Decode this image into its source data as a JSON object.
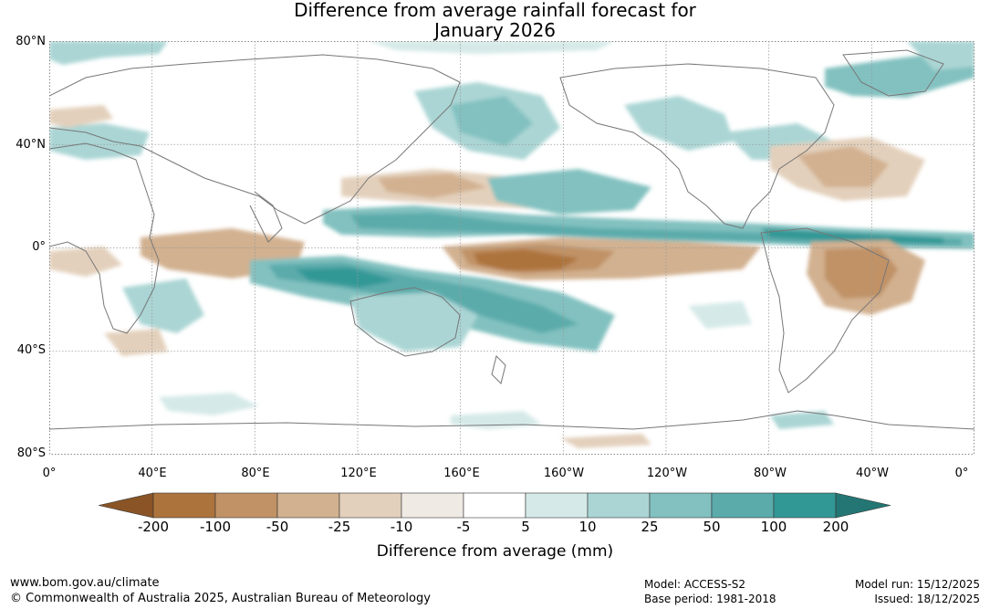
{
  "title": {
    "line1": "Difference from average rainfall forecast for",
    "line2": "January 2026"
  },
  "map": {
    "lat_labels": [
      "80°N",
      "40°N",
      "0°",
      "40°S",
      "80°S"
    ],
    "lon_labels": [
      "0°",
      "40°E",
      "80°E",
      "120°E",
      "160°E",
      "160°W",
      "120°W",
      "80°W",
      "40°W",
      "0°"
    ],
    "land_outline_color": "#777777",
    "grid_color": "#999999"
  },
  "legend": {
    "title": "Difference from average (mm)",
    "tick_labels": [
      "-200",
      "-100",
      "-50",
      "-25",
      "-10",
      "-5",
      "5",
      "10",
      "25",
      "50",
      "100",
      "200"
    ],
    "colors": [
      "#8a5426",
      "#ad733c",
      "#c09266",
      "#d2b190",
      "#e3d0bc",
      "#f0eae4",
      "#ffffff",
      "#d5eae8",
      "#aad5d4",
      "#82c1c0",
      "#5babab",
      "#329896",
      "#237673"
    ]
  },
  "footer": {
    "website": "www.bom.gov.au/climate",
    "copyright": "© Commonwealth of Australia 2025, Australian Bureau of Meteorology",
    "model": "Model: ACCESS-S2",
    "base_period": "Base period: 1981-2018",
    "model_run": "Model run: 15/12/2025",
    "issued": "Issued: 18/12/2025"
  }
}
